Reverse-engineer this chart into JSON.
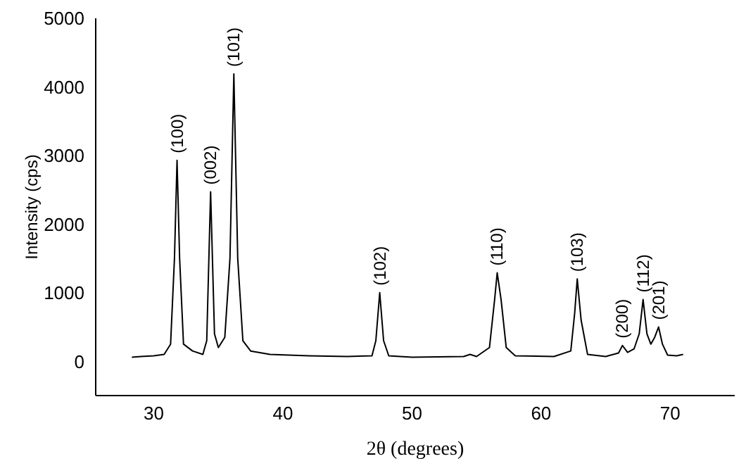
{
  "chart_data": {
    "type": "line",
    "xlabel": "2θ (degrees)",
    "ylabel": "Intensity (cps)",
    "x": [
      28.3,
      29,
      30,
      30.8,
      31.3,
      31.6,
      31.8,
      32.0,
      32.3,
      33,
      33.8,
      34.1,
      34.4,
      34.7,
      35,
      35.5,
      35.9,
      36.2,
      36.5,
      36.9,
      37.5,
      39,
      42,
      45,
      46.9,
      47.2,
      47.5,
      47.8,
      48.2,
      50,
      54,
      54.5,
      55,
      56,
      56.4,
      56.6,
      56.9,
      57.3,
      58,
      61,
      62.3,
      62.6,
      62.8,
      63.1,
      63.6,
      65,
      66,
      66.3,
      66.7,
      67.2,
      67.6,
      67.9,
      68.2,
      68.5,
      68.8,
      69.1,
      69.4,
      69.8,
      70.5,
      71
    ],
    "series": [
      {
        "color": "#000000",
        "values": [
          60,
          70,
          80,
          100,
          250,
          1500,
          2930,
          1500,
          250,
          150,
          100,
          300,
          2470,
          400,
          200,
          350,
          1500,
          4190,
          1500,
          300,
          150,
          100,
          80,
          70,
          80,
          300,
          1000,
          300,
          80,
          60,
          70,
          100,
          70,
          200,
          900,
          1290,
          900,
          200,
          80,
          70,
          150,
          700,
          1200,
          600,
          100,
          70,
          120,
          230,
          130,
          180,
          400,
          900,
          400,
          250,
          350,
          500,
          250,
          90,
          80,
          100
        ]
      }
    ],
    "xlim": [
      25.5,
      75
    ],
    "xticks": [
      30,
      40,
      50,
      60,
      70
    ],
    "ylim": [
      -500,
      5000
    ],
    "yticks": [
      0,
      1000,
      2000,
      3000,
      4000,
      5000
    ],
    "grid": false,
    "legend": false,
    "marker": "none",
    "line_style": "solid",
    "annotations": [
      {
        "text": "(100)",
        "x": 31.8,
        "y": 2930
      },
      {
        "text": "(002)",
        "x": 34.4,
        "y": 2470
      },
      {
        "text": "(101)",
        "x": 36.2,
        "y": 4190
      },
      {
        "text": "(102)",
        "x": 47.5,
        "y": 1000
      },
      {
        "text": "(110)",
        "x": 56.6,
        "y": 1290
      },
      {
        "text": "(103)",
        "x": 62.8,
        "y": 1200
      },
      {
        "text": "(200)",
        "x": 66.3,
        "y": 230
      },
      {
        "text": "(112)",
        "x": 67.9,
        "y": 900
      },
      {
        "text": "(201)",
        "x": 69.1,
        "y": 500
      }
    ]
  }
}
